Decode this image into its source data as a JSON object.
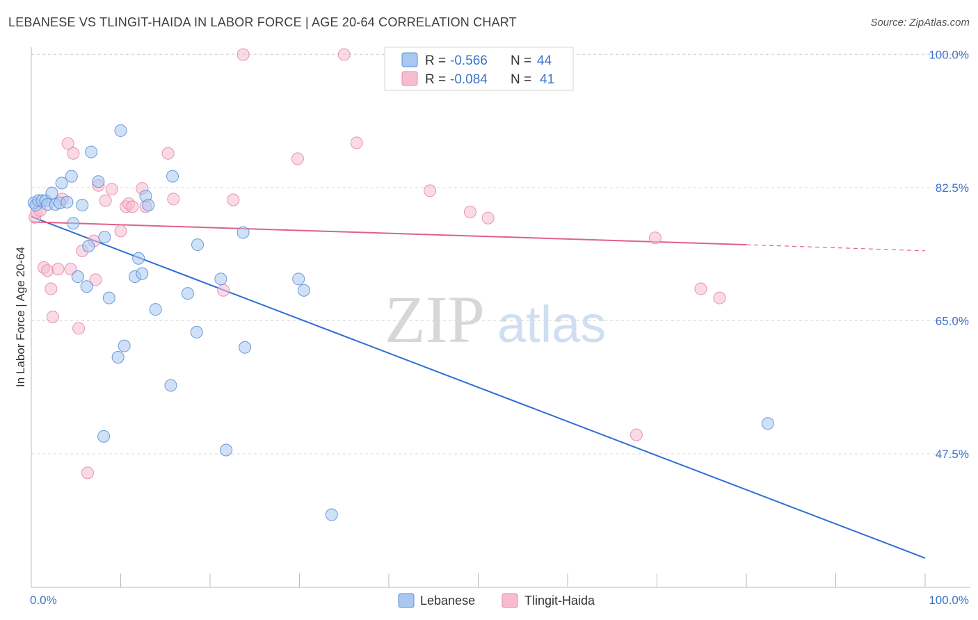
{
  "title": "LEBANESE VS TLINGIT-HAIDA IN LABOR FORCE | AGE 20-64 CORRELATION CHART",
  "source": "Source: ZipAtlas.com",
  "watermark": {
    "zip": "ZIP",
    "atlas": "atlas"
  },
  "colors": {
    "lebanese_fill": "#a9c8f0",
    "lebanese_stroke": "#5b8fd6",
    "lebanese_line": "#2e6fd3",
    "tlingit_fill": "#f6bdd0",
    "tlingit_stroke": "#e48aa8",
    "tlingit_line": "#e0608a",
    "axis_label": "#3b74c9",
    "grid": "#d9d9d9"
  },
  "legend": {
    "rows": [
      {
        "r_label": "R =",
        "r_value": "-0.566",
        "n_label": "N =",
        "n_value": "44"
      },
      {
        "r_label": "R =",
        "r_value": "-0.084",
        "n_label": "N =",
        "n_value": "41"
      }
    ]
  },
  "bottom_legend": [
    "Lebanese",
    "Tlingit-Haida"
  ],
  "chart_data": {
    "type": "scatter",
    "title": "LEBANESE VS TLINGIT-HAIDA IN LABOR FORCE | AGE 20-64 CORRELATION CHART",
    "xlabel": "",
    "ylabel": "In Labor Force | Age 20-64",
    "xlim": [
      0,
      100
    ],
    "ylim": [
      32.5,
      102
    ],
    "x_tick_labels": [
      {
        "value": 0,
        "label": "0.0%"
      },
      {
        "value": 100,
        "label": "100.0%"
      }
    ],
    "y_tick_labels": [
      {
        "value": 100,
        "label": "100.0%"
      },
      {
        "value": 82.5,
        "label": "82.5%"
      },
      {
        "value": 65,
        "label": "65.0%"
      },
      {
        "value": 47.5,
        "label": "47.5%"
      }
    ],
    "grid": "horizontal dashed",
    "legend_placement": "top-center",
    "series": [
      {
        "name": "Lebanese",
        "r": -0.566,
        "n": 44,
        "trend": {
          "x": [
            0,
            100
          ],
          "y": [
            78.7,
            33.8
          ]
        },
        "points": [
          [
            0.3,
            80.5
          ],
          [
            0.5,
            80.2
          ],
          [
            0.8,
            80.8
          ],
          [
            1.2,
            80.8
          ],
          [
            1.6,
            80.8
          ],
          [
            1.8,
            80.3
          ],
          [
            2.3,
            81.8
          ],
          [
            2.7,
            80.3
          ],
          [
            3.2,
            80.5
          ],
          [
            3.4,
            83.1
          ],
          [
            4.0,
            80.6
          ],
          [
            4.5,
            84.0
          ],
          [
            5.7,
            80.2
          ],
          [
            4.7,
            77.8
          ],
          [
            6.7,
            87.2
          ],
          [
            7.5,
            83.3
          ],
          [
            10.0,
            90.0
          ],
          [
            12.8,
            81.4
          ],
          [
            6.2,
            69.5
          ],
          [
            5.2,
            70.8
          ],
          [
            6.4,
            74.8
          ],
          [
            8.2,
            76.0
          ],
          [
            8.7,
            68.0
          ],
          [
            9.7,
            60.2
          ],
          [
            10.4,
            61.7
          ],
          [
            11.6,
            70.8
          ],
          [
            12.0,
            73.2
          ],
          [
            12.4,
            71.2
          ],
          [
            13.1,
            80.2
          ],
          [
            13.9,
            66.5
          ],
          [
            15.6,
            56.5
          ],
          [
            15.8,
            84.0
          ],
          [
            17.5,
            68.6
          ],
          [
            18.5,
            63.5
          ],
          [
            18.6,
            75.0
          ],
          [
            21.2,
            70.5
          ],
          [
            21.8,
            48.0
          ],
          [
            23.7,
            76.6
          ],
          [
            23.9,
            61.5
          ],
          [
            29.9,
            70.5
          ],
          [
            30.5,
            69.0
          ],
          [
            33.6,
            39.5
          ],
          [
            82.4,
            51.5
          ],
          [
            8.1,
            49.8
          ]
        ]
      },
      {
        "name": "Tlingit-Haida",
        "r": -0.084,
        "n": 41,
        "trend": {
          "x": [
            0,
            80
          ],
          "y": [
            78.0,
            75.0
          ]
        },
        "trend_dashed": {
          "x": [
            80,
            100
          ],
          "y": [
            75.0,
            74.2
          ]
        },
        "points": [
          [
            0.4,
            78.6
          ],
          [
            0.6,
            79.3
          ],
          [
            1.0,
            79.5
          ],
          [
            1.4,
            72.0
          ],
          [
            1.8,
            71.6
          ],
          [
            2.2,
            69.2
          ],
          [
            2.4,
            65.5
          ],
          [
            3.0,
            71.8
          ],
          [
            3.5,
            81.0
          ],
          [
            4.1,
            88.3
          ],
          [
            4.4,
            71.8
          ],
          [
            4.7,
            87.0
          ],
          [
            5.3,
            64.0
          ],
          [
            5.7,
            74.2
          ],
          [
            6.3,
            45.0
          ],
          [
            7.0,
            75.5
          ],
          [
            7.2,
            70.4
          ],
          [
            7.5,
            82.8
          ],
          [
            8.3,
            80.8
          ],
          [
            9.0,
            82.3
          ],
          [
            10.0,
            76.8
          ],
          [
            10.6,
            80.0
          ],
          [
            10.9,
            80.4
          ],
          [
            11.3,
            80.0
          ],
          [
            12.4,
            82.4
          ],
          [
            12.8,
            80.0
          ],
          [
            15.3,
            87.0
          ],
          [
            15.9,
            81.0
          ],
          [
            21.5,
            69.0
          ],
          [
            22.6,
            80.9
          ],
          [
            23.7,
            100.0
          ],
          [
            29.8,
            86.3
          ],
          [
            35.0,
            100.0
          ],
          [
            36.4,
            88.4
          ],
          [
            44.6,
            82.1
          ],
          [
            49.1,
            79.3
          ],
          [
            51.1,
            78.5
          ],
          [
            67.7,
            50.0
          ],
          [
            69.8,
            75.9
          ],
          [
            74.9,
            69.2
          ],
          [
            77.0,
            68.0
          ]
        ]
      }
    ]
  }
}
